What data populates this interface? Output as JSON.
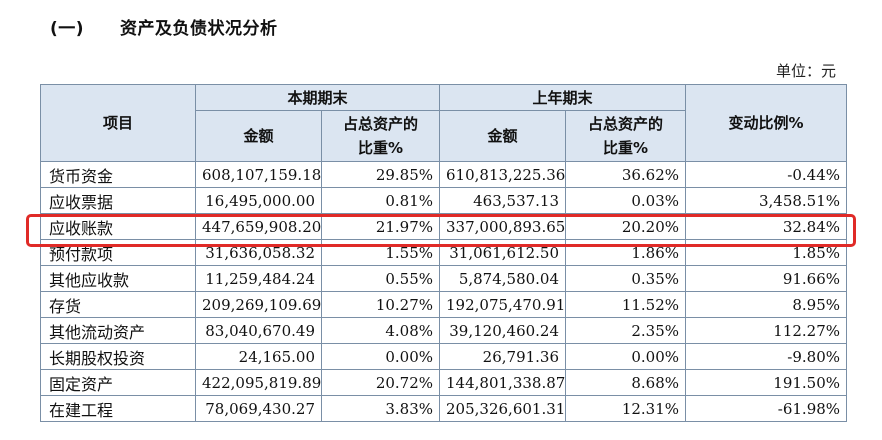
{
  "section": {
    "number": "(一)",
    "title": "资产及负债状况分析"
  },
  "unit_label": "单位：元",
  "table": {
    "headers": {
      "item": "项目",
      "current_period": "本期期末",
      "prior_year": "上年期末",
      "change_ratio": "变动比例%",
      "amount": "金额",
      "share_line1": "占总资产的",
      "share_line2": "比重%"
    },
    "rows": [
      {
        "item": "货币资金",
        "cur_amount": "608,107,159.18",
        "cur_pct": "29.85%",
        "prev_amount": "610,813,225.36",
        "prev_pct": "36.62%",
        "change": "-0.44%"
      },
      {
        "item": "应收票据",
        "cur_amount": "16,495,000.00",
        "cur_pct": "0.81%",
        "prev_amount": "463,537.13",
        "prev_pct": "0.03%",
        "change": "3,458.51%"
      },
      {
        "item": "应收账款",
        "cur_amount": "447,659,908.20",
        "cur_pct": "21.97%",
        "prev_amount": "337,000,893.65",
        "prev_pct": "20.20%",
        "change": "32.84%"
      },
      {
        "item": "预付款项",
        "cur_amount": "31,636,058.32",
        "cur_pct": "1.55%",
        "prev_amount": "31,061,612.50",
        "prev_pct": "1.86%",
        "change": "1.85%"
      },
      {
        "item": "其他应收款",
        "cur_amount": "11,259,484.24",
        "cur_pct": "0.55%",
        "prev_amount": "5,874,580.04",
        "prev_pct": "0.35%",
        "change": "91.66%"
      },
      {
        "item": "存货",
        "cur_amount": "209,269,109.69",
        "cur_pct": "10.27%",
        "prev_amount": "192,075,470.91",
        "prev_pct": "11.52%",
        "change": "8.95%"
      },
      {
        "item": "其他流动资产",
        "cur_amount": "83,040,670.49",
        "cur_pct": "4.08%",
        "prev_amount": "39,120,460.24",
        "prev_pct": "2.35%",
        "change": "112.27%"
      },
      {
        "item": "长期股权投资",
        "cur_amount": "24,165.00",
        "cur_pct": "0.00%",
        "prev_amount": "26,791.36",
        "prev_pct": "0.00%",
        "change": "-9.80%"
      },
      {
        "item": "固定资产",
        "cur_amount": "422,095,819.89",
        "cur_pct": "20.72%",
        "prev_amount": "144,801,338.87",
        "prev_pct": "8.68%",
        "change": "191.50%"
      },
      {
        "item": "在建工程",
        "cur_amount": "78,069,430.27",
        "cur_pct": "3.83%",
        "prev_amount": "205,326,601.31",
        "prev_pct": "12.31%",
        "change": "-61.98%"
      }
    ]
  },
  "highlight": {
    "row_item": "应收账款",
    "color": "#e02a27"
  },
  "colors": {
    "header_bg": "#dbe5f1",
    "border": "#7a8fa6"
  }
}
